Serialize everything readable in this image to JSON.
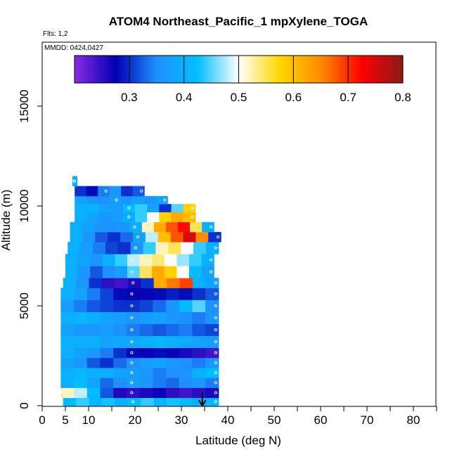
{
  "chart_data": {
    "type": "heatmap",
    "title": "ATOM4 Northeast_Pacific_1 mpXylene_TOGA",
    "subtitle_flights": "Flts: 1,2",
    "subtitle_dates": "MMDD: 0424,0427",
    "xlabel": "Latitude (deg N)",
    "ylabel": "Altitude (m)",
    "xlim": [
      0,
      85
    ],
    "ylim": [
      0,
      18000
    ],
    "x_ticks": [
      0,
      5,
      10,
      20,
      30,
      40,
      50,
      60,
      70,
      80
    ],
    "y_ticks": [
      0,
      5000,
      10000,
      15000
    ],
    "colorbar": {
      "range": [
        0.2,
        0.8
      ],
      "ticks": [
        0.3,
        0.4,
        0.5,
        0.6,
        0.7,
        0.8
      ],
      "colors": [
        "#8a2be2",
        "#0000b4",
        "#1e90ff",
        "#00bfff",
        "#ffffff",
        "#ffd700",
        "#ff8c00",
        "#ff0000",
        "#8b1a1a"
      ]
    },
    "marker_latitude": 34.5,
    "layers": [
      {
        "alt": [
          0,
          400
        ],
        "lat": [
          4.5,
          38
        ],
        "values": [
          0.42,
          0.44,
          0.41,
          0.43,
          0.4,
          0.42,
          0.44,
          0.41,
          0.43,
          0.42,
          0.4,
          0.41
        ]
      },
      {
        "alt": [
          400,
          900
        ],
        "lat": [
          4,
          38
        ],
        "values": [
          0.52,
          0.48,
          0.42,
          0.32,
          0.26,
          0.25,
          0.26,
          0.27,
          0.25,
          0.24,
          0.25,
          0.26
        ]
      },
      {
        "alt": [
          900,
          1400
        ],
        "lat": [
          4,
          38
        ],
        "values": [
          0.4,
          0.42,
          0.38,
          0.33,
          0.35,
          0.37,
          0.36,
          0.34,
          0.33,
          0.35,
          0.36,
          0.34
        ]
      },
      {
        "alt": [
          1400,
          1900
        ],
        "lat": [
          4,
          38
        ],
        "values": [
          0.4,
          0.41,
          0.4,
          0.4,
          0.38,
          0.37,
          0.36,
          0.34,
          0.35,
          0.36,
          0.4,
          0.42
        ]
      },
      {
        "alt": [
          1900,
          2400
        ],
        "lat": [
          4,
          38
        ],
        "values": [
          0.38,
          0.36,
          0.32,
          0.3,
          0.33,
          0.35,
          0.37,
          0.38,
          0.36,
          0.35,
          0.34,
          0.36
        ]
      },
      {
        "alt": [
          2400,
          2900
        ],
        "lat": [
          4,
          38
        ],
        "values": [
          0.4,
          0.38,
          0.36,
          0.34,
          0.3,
          0.28,
          0.27,
          0.28,
          0.27,
          0.26,
          0.25,
          0.24
        ]
      },
      {
        "alt": [
          2900,
          3500
        ],
        "lat": [
          4,
          38
        ],
        "values": [
          0.4,
          0.4,
          0.4,
          0.38,
          0.39,
          0.39,
          0.4,
          0.41,
          0.4,
          0.39,
          0.38,
          0.37
        ]
      },
      {
        "alt": [
          3500,
          4100
        ],
        "lat": [
          4,
          38
        ],
        "values": [
          0.38,
          0.36,
          0.36,
          0.37,
          0.35,
          0.34,
          0.33,
          0.32,
          0.33,
          0.34,
          0.32,
          0.31
        ]
      },
      {
        "alt": [
          4100,
          4700
        ],
        "lat": [
          4,
          38
        ],
        "values": [
          0.4,
          0.41,
          0.4,
          0.38,
          0.37,
          0.36,
          0.37,
          0.38,
          0.36,
          0.35,
          0.34,
          0.36
        ]
      },
      {
        "alt": [
          4700,
          5300
        ],
        "lat": [
          4,
          38
        ],
        "values": [
          0.37,
          0.34,
          0.32,
          0.31,
          0.3,
          0.3,
          0.31,
          0.33,
          0.36,
          0.42,
          0.45,
          0.35
        ]
      },
      {
        "alt": [
          5300,
          5900
        ],
        "lat": [
          4,
          38
        ],
        "values": [
          0.4,
          0.38,
          0.34,
          0.31,
          0.28,
          0.27,
          0.27,
          0.28,
          0.29,
          0.28,
          0.3,
          0.32
        ]
      },
      {
        "alt": [
          5900,
          6400
        ],
        "lat": [
          4.5,
          38
        ],
        "values": [
          0.4,
          0.36,
          0.3,
          0.25,
          0.24,
          0.26,
          0.3,
          0.62,
          0.66,
          0.69,
          0.4,
          0.38
        ]
      },
      {
        "alt": [
          6400,
          7000
        ],
        "lat": [
          5,
          37
        ],
        "values": [
          0.4,
          0.36,
          0.32,
          0.35,
          0.37,
          0.45,
          0.55,
          0.62,
          0.58,
          0.5,
          0.42,
          0.38
        ]
      },
      {
        "alt": [
          7000,
          7600
        ],
        "lat": [
          5,
          37
        ],
        "values": [
          0.4,
          0.38,
          0.36,
          0.4,
          0.44,
          0.48,
          0.52,
          0.54,
          0.5,
          0.47,
          0.44,
          0.4
        ]
      },
      {
        "alt": [
          7600,
          8200
        ],
        "lat": [
          5.5,
          38
        ],
        "values": [
          0.4,
          0.37,
          0.34,
          0.31,
          0.3,
          0.36,
          0.44,
          0.52,
          0.55,
          0.5,
          0.44,
          0.4
        ]
      },
      {
        "alt": [
          8200,
          8700
        ],
        "lat": [
          6,
          38.5
        ],
        "values": [
          0.4,
          0.36,
          0.32,
          0.3,
          0.33,
          0.38,
          0.48,
          0.6,
          0.68,
          0.75,
          0.65,
          0.3
        ]
      },
      {
        "alt": [
          8700,
          9200
        ],
        "lat": [
          6,
          37
        ],
        "values": [
          0.4,
          0.38,
          0.36,
          0.35,
          0.36,
          0.4,
          0.52,
          0.62,
          0.68,
          0.72,
          0.55,
          0.4
        ]
      },
      {
        "alt": [
          9200,
          9700
        ],
        "lat": [
          7,
          33
        ],
        "values": [
          0.4,
          0.38,
          0.36,
          0.37,
          0.4,
          0.44,
          0.5,
          0.58,
          0.62,
          0.6
        ]
      },
      {
        "alt": [
          9700,
          10100
        ],
        "lat": [
          7,
          33
        ],
        "values": [
          0.4,
          0.41,
          0.38,
          0.37,
          0.42,
          0.44,
          0.38,
          0.3,
          0.45,
          0.58
        ]
      },
      {
        "alt": [
          10100,
          10500
        ],
        "lat": [
          7,
          27
        ],
        "values": [
          0.38,
          0.36,
          0.35,
          0.37,
          0.36,
          0.38,
          0.36,
          0.38
        ]
      },
      {
        "alt": [
          10500,
          11000
        ],
        "lat": [
          7,
          22
        ],
        "values": [
          0.3,
          0.28,
          0.34,
          0.36,
          0.3,
          0.32
        ]
      },
      {
        "alt": [
          11000,
          11500
        ],
        "lat": [
          6.5,
          7.5
        ],
        "values": [
          0.4
        ]
      }
    ]
  }
}
